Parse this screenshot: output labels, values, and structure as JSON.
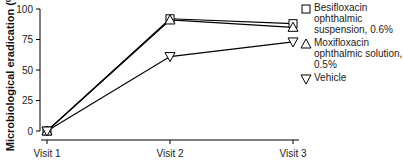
{
  "chart_data": {
    "type": "line",
    "y_label": "Microbiological eradication (%)",
    "categories": [
      "Visit 1",
      "Visit 2",
      "Visit 3"
    ],
    "series": [
      {
        "name": "Besifloxacin ophthalmic suspension, 0.6%",
        "color": "#000000",
        "marker": "square",
        "values": [
          0,
          92,
          88
        ]
      },
      {
        "name": "Moxifloxacin ophthalmic solution, 0.5%",
        "color": "#000000",
        "marker": "triangle",
        "values": [
          0,
          91,
          85
        ]
      },
      {
        "name": "Vehicle",
        "color": "#000000",
        "marker": "triangle-down",
        "values": [
          0,
          61,
          73
        ]
      }
    ],
    "ylim": [
      0,
      100
    ],
    "yticks": [
      0,
      25,
      50,
      75,
      100
    ],
    "grid": false,
    "legend": "right"
  }
}
